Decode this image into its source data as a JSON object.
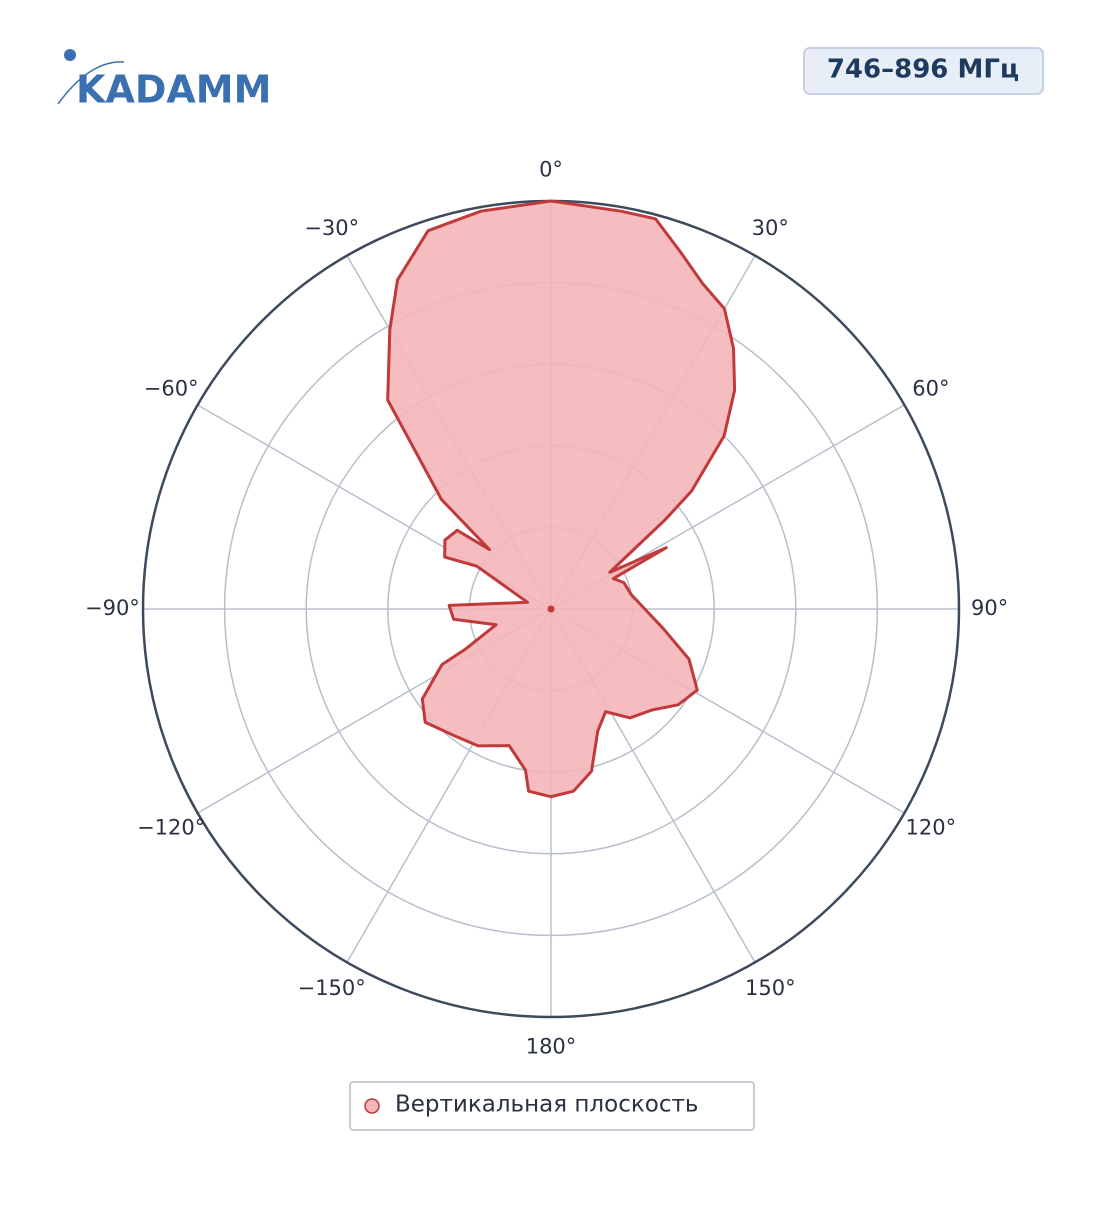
{
  "header": {
    "logo": "KADAMM",
    "band": "746–896 МГц"
  },
  "chart_data": {
    "type": "polar",
    "theta_direction": "clockwise",
    "theta_zero": "top",
    "rlim": [
      0,
      1
    ],
    "rticks": [
      0.2,
      0.4,
      0.6,
      0.8,
      1
    ],
    "thetaticks": [
      {
        "value": 0,
        "label": "0°"
      },
      {
        "value": 30,
        "label": "30°"
      },
      {
        "value": 60,
        "label": "60°"
      },
      {
        "value": 90,
        "label": "90°"
      },
      {
        "value": 120,
        "label": "120°"
      },
      {
        "value": 150,
        "label": "150°"
      },
      {
        "value": 180,
        "label": "180°"
      },
      {
        "value": -150,
        "label": "−150°"
      },
      {
        "value": -120,
        "label": "−120°"
      },
      {
        "value": -90,
        "label": "−90°"
      },
      {
        "value": -60,
        "label": "−60°"
      },
      {
        "value": -30,
        "label": "−30°"
      }
    ],
    "grid": true,
    "legend": "bottom",
    "series": [
      {
        "name": "Вертикальная плоскость",
        "color": "#c0393b",
        "fill": "#f4b6b8",
        "theta": [
          0,
          10,
          15,
          20,
          25,
          30,
          35,
          40,
          45,
          50,
          52,
          58,
          62,
          64,
          70,
          80,
          90,
          100,
          110,
          119,
          127,
          135,
          144,
          152,
          159,
          166,
          173,
          180,
          -173,
          -171,
          -163,
          -152,
          -143,
          -132,
          -125,
          -117,
          -115,
          -106,
          -96,
          -88,
          -74,
          -60,
          -64,
          -57,
          -50,
          -46,
          -45,
          -40,
          -38,
          -30,
          -25,
          -18,
          -10,
          0
        ],
        "r": [
          1.0,
          0.99,
          0.99,
          0.93,
          0.88,
          0.85,
          0.78,
          0.7,
          0.6,
          0.45,
          0.355,
          0.17,
          0.32,
          0.17,
          0.19,
          0.2,
          0.23,
          0.28,
          0.36,
          0.41,
          0.39,
          0.35,
          0.33,
          0.285,
          0.32,
          0.41,
          0.45,
          0.46,
          0.45,
          0.4,
          0.35,
          0.38,
          0.39,
          0.415,
          0.385,
          0.3,
          0.23,
          0.14,
          0.24,
          0.25,
          0.06,
          0.21,
          0.29,
          0.31,
          0.3,
          0.21,
          0.38,
          0.54,
          0.65,
          0.79,
          0.89,
          0.975,
          0.99,
          1.0
        ]
      }
    ]
  }
}
